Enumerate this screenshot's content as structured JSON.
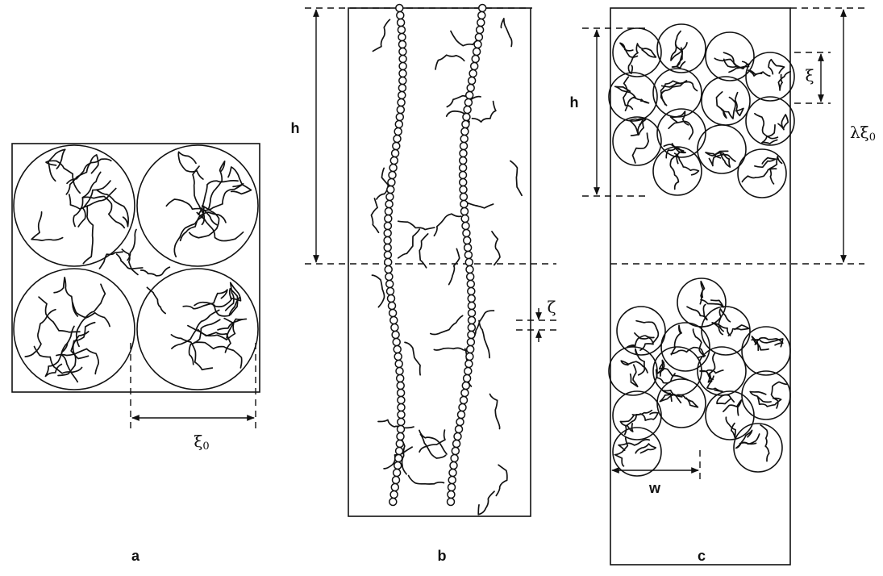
{
  "panel_a": {
    "label": "a",
    "xi0": {
      "symbol": "ξ",
      "subscript": "0"
    }
  },
  "panel_b": {
    "label": "b",
    "h": "h",
    "zeta": "ζ"
  },
  "panel_c": {
    "label": "c",
    "h": "h",
    "xi": "ξ",
    "lambda_xi0": {
      "symbol": "λξ",
      "subscript": "0"
    },
    "w": "w"
  }
}
